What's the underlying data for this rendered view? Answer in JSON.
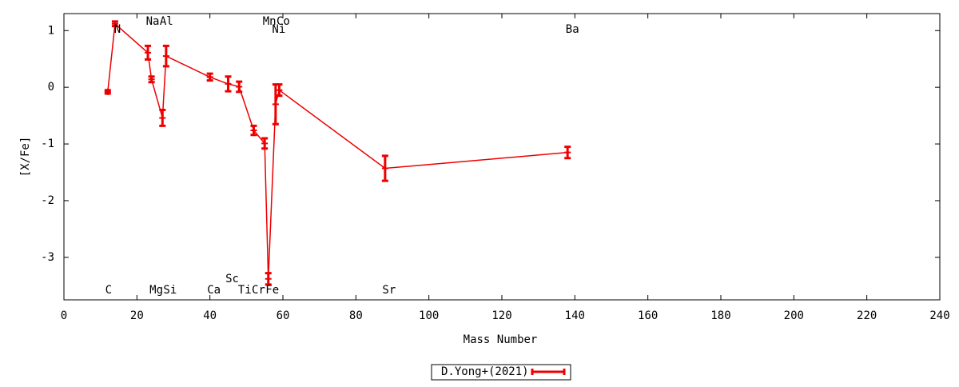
{
  "chart_data": {
    "type": "errorline",
    "xlabel": "Mass Number",
    "ylabel": "[X/Fe]",
    "xlim": [
      0,
      240
    ],
    "ylim": [
      -3.75,
      1.3
    ],
    "xticks": [
      0,
      20,
      40,
      60,
      80,
      100,
      120,
      140,
      160,
      180,
      200,
      220,
      240
    ],
    "yticks": [
      -3,
      -2,
      -1,
      0,
      1
    ],
    "legend": "bottom",
    "series": [
      {
        "name": "D.Yong+(2021)",
        "color": "#ee0000",
        "labels": [
          "C",
          "N",
          "Na",
          "Mg",
          "Al",
          "Si",
          "Ca",
          "Sc",
          "Ti",
          "Cr",
          "Mn",
          "Fe",
          "Ni",
          "Co",
          "Sr",
          "Ba"
        ],
        "x": [
          12,
          14,
          23,
          24,
          27,
          28,
          40,
          45,
          48,
          52,
          55,
          56,
          58,
          59,
          88,
          138
        ],
        "values": [
          -0.08,
          1.12,
          0.61,
          0.14,
          -0.54,
          0.55,
          0.18,
          0.06,
          0.01,
          -0.76,
          -0.99,
          -3.38,
          -0.3,
          -0.05,
          -1.43,
          -1.15
        ],
        "errors": [
          0.03,
          0.04,
          0.12,
          0.05,
          0.14,
          0.18,
          0.06,
          0.13,
          0.09,
          0.08,
          0.09,
          0.1,
          0.35,
          0.1,
          0.22,
          0.1
        ]
      }
    ]
  }
}
